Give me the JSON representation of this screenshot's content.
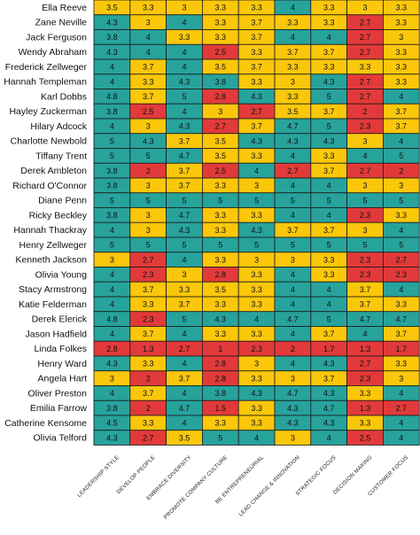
{
  "colors": {
    "green": "#27a39c",
    "yellow": "#fbc70b",
    "red": "#e23a3a"
  },
  "chart_data": {
    "type": "heatmap",
    "title": "",
    "columns": [
      "LEADERSHIP STYLE",
      "DEVELOP PEOPLE",
      "EMBRACE DIVERSITY",
      "PROMOTE COMPANY CULTURE",
      "BE ENTREPRENEURIAL",
      "LEAD CHANGE & INNOVATION",
      "STRATEGIC FOCUS",
      "DECISION MAKING",
      "CUSTOMER FOCUS"
    ],
    "rows": [
      {
        "name": "Ella Reeve",
        "values": [
          "3.5",
          "3.3",
          "3",
          "3.3",
          "3.3",
          "4",
          "3.3",
          "3",
          "3.3"
        ],
        "colors": [
          "yellow",
          "yellow",
          "yellow",
          "yellow",
          "yellow",
          "green",
          "yellow",
          "yellow",
          "yellow"
        ]
      },
      {
        "name": "Zane Neville",
        "values": [
          "4.3",
          "3",
          "4",
          "3.3",
          "3.7",
          "3.3",
          "3.3",
          "2.7",
          "3.3"
        ],
        "colors": [
          "green",
          "yellow",
          "green",
          "yellow",
          "yellow",
          "yellow",
          "yellow",
          "red",
          "yellow"
        ]
      },
      {
        "name": "Jack Ferguson",
        "values": [
          "3.8",
          "4",
          "3.3",
          "3.3",
          "3.7",
          "4",
          "4",
          "2.7",
          "3"
        ],
        "colors": [
          "green",
          "green",
          "yellow",
          "yellow",
          "yellow",
          "green",
          "green",
          "red",
          "yellow"
        ]
      },
      {
        "name": "Wendy Abraham",
        "values": [
          "4.3",
          "4",
          "4",
          "2.5",
          "3.3",
          "3.7",
          "3.7",
          "2.7",
          "3.3"
        ],
        "colors": [
          "green",
          "green",
          "green",
          "red",
          "yellow",
          "yellow",
          "yellow",
          "red",
          "yellow"
        ]
      },
      {
        "name": "Frederick Zellweger",
        "values": [
          "4",
          "3.7",
          "4",
          "3.5",
          "3.7",
          "3.3",
          "3.3",
          "3.3",
          "3.3"
        ],
        "colors": [
          "green",
          "yellow",
          "green",
          "yellow",
          "yellow",
          "yellow",
          "yellow",
          "yellow",
          "yellow"
        ]
      },
      {
        "name": "Hannah Templeman",
        "values": [
          "4",
          "3.3",
          "4.3",
          "3.8",
          "3.3",
          "3",
          "4.3",
          "2.7",
          "3.3"
        ],
        "colors": [
          "green",
          "yellow",
          "green",
          "green",
          "yellow",
          "yellow",
          "green",
          "red",
          "yellow"
        ]
      },
      {
        "name": "Karl Dobbs",
        "values": [
          "4.8",
          "3.7",
          "5",
          "2.8",
          "4.3",
          "3.3",
          "5",
          "2.7",
          "4"
        ],
        "colors": [
          "green",
          "yellow",
          "green",
          "red",
          "green",
          "yellow",
          "green",
          "red",
          "green"
        ]
      },
      {
        "name": "Hayley Zuckerman",
        "values": [
          "3.8",
          "2.5",
          "4",
          "3",
          "2.7",
          "3.5",
          "3.7",
          "2",
          "3.7"
        ],
        "colors": [
          "green",
          "red",
          "green",
          "yellow",
          "red",
          "yellow",
          "yellow",
          "red",
          "yellow"
        ]
      },
      {
        "name": "Hilary Adcock",
        "values": [
          "4",
          "3",
          "4.3",
          "2.7",
          "3.7",
          "4.7",
          "5",
          "2.3",
          "3.7"
        ],
        "colors": [
          "green",
          "yellow",
          "green",
          "red",
          "yellow",
          "green",
          "green",
          "red",
          "yellow"
        ]
      },
      {
        "name": "Charlotte Newbold",
        "values": [
          "5",
          "4.3",
          "3.7",
          "3.5",
          "4.3",
          "4.3",
          "4.3",
          "3",
          "4"
        ],
        "colors": [
          "green",
          "green",
          "yellow",
          "yellow",
          "green",
          "green",
          "green",
          "yellow",
          "green"
        ]
      },
      {
        "name": "Tiffany Trent",
        "values": [
          "5",
          "5",
          "4.7",
          "3.5",
          "3.3",
          "4",
          "3.3",
          "4",
          "5"
        ],
        "colors": [
          "green",
          "green",
          "green",
          "yellow",
          "yellow",
          "green",
          "yellow",
          "green",
          "green"
        ]
      },
      {
        "name": "Derek Ambleton",
        "values": [
          "3.8",
          "2",
          "3.7",
          "2.5",
          "4",
          "2.7",
          "3.7",
          "2.7",
          "2"
        ],
        "colors": [
          "green",
          "red",
          "yellow",
          "red",
          "green",
          "red",
          "yellow",
          "red",
          "red"
        ]
      },
      {
        "name": "Richard O'Connor",
        "values": [
          "3.8",
          "3",
          "3.7",
          "3.3",
          "3",
          "4",
          "4",
          "3",
          "3"
        ],
        "colors": [
          "green",
          "yellow",
          "yellow",
          "yellow",
          "yellow",
          "green",
          "green",
          "yellow",
          "yellow"
        ]
      },
      {
        "name": "Diane Penn",
        "values": [
          "5",
          "5",
          "5",
          "5",
          "5",
          "5",
          "5",
          "5",
          "5"
        ],
        "colors": [
          "green",
          "green",
          "green",
          "green",
          "green",
          "green",
          "green",
          "green",
          "green"
        ]
      },
      {
        "name": "Ricky Beckley",
        "values": [
          "3.8",
          "3",
          "4.7",
          "3.3",
          "3.3",
          "4",
          "4",
          "2.3",
          "3.3"
        ],
        "colors": [
          "green",
          "yellow",
          "green",
          "yellow",
          "yellow",
          "green",
          "green",
          "red",
          "yellow"
        ]
      },
      {
        "name": "Hannah Thackray",
        "values": [
          "4",
          "3",
          "4.3",
          "3.3",
          "4.3",
          "3.7",
          "3.7",
          "3",
          "4"
        ],
        "colors": [
          "green",
          "yellow",
          "green",
          "yellow",
          "green",
          "yellow",
          "yellow",
          "yellow",
          "green"
        ]
      },
      {
        "name": "Henry Zellweger",
        "values": [
          "5",
          "5",
          "5",
          "5",
          "5",
          "5",
          "5",
          "5",
          "5"
        ],
        "colors": [
          "green",
          "green",
          "green",
          "green",
          "green",
          "green",
          "green",
          "green",
          "green"
        ]
      },
      {
        "name": "Kenneth Jackson",
        "values": [
          "3",
          "2.7",
          "4",
          "3.3",
          "3",
          "3",
          "3.3",
          "2.3",
          "2.7"
        ],
        "colors": [
          "yellow",
          "red",
          "green",
          "yellow",
          "yellow",
          "yellow",
          "yellow",
          "red",
          "red"
        ]
      },
      {
        "name": "Olivia Young",
        "values": [
          "4",
          "2.3",
          "3",
          "2.8",
          "3.3",
          "4",
          "3.3",
          "2.3",
          "2.3"
        ],
        "colors": [
          "green",
          "red",
          "yellow",
          "red",
          "yellow",
          "green",
          "yellow",
          "red",
          "red"
        ]
      },
      {
        "name": "Stacy Armstrong",
        "values": [
          "4",
          "3.7",
          "3.3",
          "3.5",
          "3.3",
          "4",
          "4",
          "3.7",
          "4"
        ],
        "colors": [
          "green",
          "yellow",
          "yellow",
          "yellow",
          "yellow",
          "green",
          "green",
          "yellow",
          "green"
        ]
      },
      {
        "name": "Katie Felderman",
        "values": [
          "4",
          "3.3",
          "3.7",
          "3.3",
          "3.3",
          "4",
          "4",
          "3.7",
          "3.3"
        ],
        "colors": [
          "green",
          "yellow",
          "yellow",
          "yellow",
          "yellow",
          "green",
          "green",
          "yellow",
          "yellow"
        ]
      },
      {
        "name": "Derek Elerick",
        "values": [
          "4.8",
          "2.3",
          "5",
          "4.3",
          "4",
          "4.7",
          "5",
          "4.7",
          "4.7"
        ],
        "colors": [
          "green",
          "red",
          "green",
          "green",
          "green",
          "green",
          "green",
          "green",
          "green"
        ]
      },
      {
        "name": "Jason Hadfield",
        "values": [
          "4",
          "3.7",
          "4",
          "3.3",
          "3.3",
          "4",
          "3.7",
          "4",
          "3.7"
        ],
        "colors": [
          "green",
          "yellow",
          "green",
          "yellow",
          "yellow",
          "green",
          "yellow",
          "green",
          "yellow"
        ]
      },
      {
        "name": "Linda Folkes",
        "values": [
          "2.8",
          "1.3",
          "2.7",
          "1",
          "2.3",
          "2",
          "1.7",
          "1.3",
          "1.7"
        ],
        "colors": [
          "red",
          "red",
          "red",
          "red",
          "red",
          "red",
          "red",
          "red",
          "red"
        ]
      },
      {
        "name": "Henry Ward",
        "values": [
          "4.3",
          "3.3",
          "4",
          "2.8",
          "3",
          "4",
          "4.3",
          "2.7",
          "3.3"
        ],
        "colors": [
          "green",
          "yellow",
          "green",
          "red",
          "yellow",
          "green",
          "green",
          "red",
          "yellow"
        ]
      },
      {
        "name": "Angela Hart",
        "values": [
          "3",
          "2",
          "3.7",
          "2.8",
          "3.3",
          "3",
          "3.7",
          "2.3",
          "3"
        ],
        "colors": [
          "yellow",
          "red",
          "yellow",
          "red",
          "yellow",
          "yellow",
          "yellow",
          "red",
          "yellow"
        ]
      },
      {
        "name": "Oliver Preston",
        "values": [
          "4",
          "3.7",
          "4",
          "3.8",
          "4.3",
          "4.7",
          "4.3",
          "3.3",
          "4"
        ],
        "colors": [
          "green",
          "yellow",
          "green",
          "green",
          "green",
          "green",
          "green",
          "yellow",
          "green"
        ]
      },
      {
        "name": "Emilia Farrow",
        "values": [
          "3.8",
          "2",
          "4.7",
          "1.5",
          "3.3",
          "4.3",
          "4.7",
          "1.3",
          "2.7"
        ],
        "colors": [
          "green",
          "red",
          "green",
          "red",
          "yellow",
          "green",
          "green",
          "red",
          "red"
        ]
      },
      {
        "name": "Catherine Kensome",
        "values": [
          "4.5",
          "3.3",
          "4",
          "3.3",
          "3.3",
          "4.3",
          "4.3",
          "3.3",
          "4"
        ],
        "colors": [
          "green",
          "yellow",
          "green",
          "yellow",
          "yellow",
          "green",
          "green",
          "yellow",
          "green"
        ]
      },
      {
        "name": "Olivia Telford",
        "values": [
          "4.3",
          "2.7",
          "3.5",
          "5",
          "4",
          "3",
          "4",
          "2.5",
          "4"
        ],
        "colors": [
          "green",
          "red",
          "yellow",
          "green",
          "green",
          "yellow",
          "green",
          "red",
          "green"
        ]
      }
    ]
  }
}
